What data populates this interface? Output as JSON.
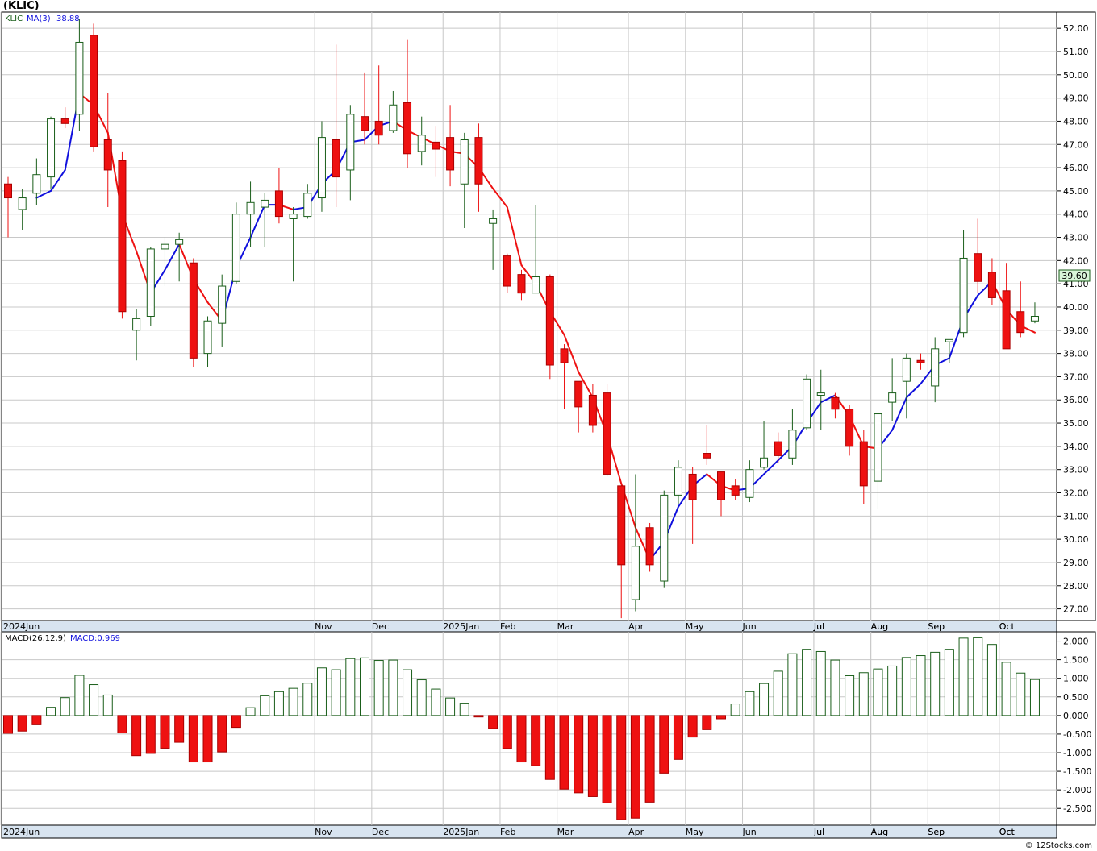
{
  "title": "(KLIC)",
  "footer": "© 12Stocks.com",
  "price_panel": {
    "legend": {
      "ticker": "KLIC",
      "ma_label": "MA(3)",
      "ma_value": "38.88"
    },
    "last_price_label": "39.60",
    "y_ticks": [
      "27.00",
      "28.00",
      "29.00",
      "30.00",
      "31.00",
      "32.00",
      "33.00",
      "34.00",
      "35.00",
      "36.00",
      "37.00",
      "38.00",
      "39.00",
      "40.00",
      "41.00",
      "42.00",
      "43.00",
      "44.00",
      "45.00",
      "46.00",
      "47.00",
      "48.00",
      "49.00",
      "50.00",
      "51.00",
      "52.00"
    ]
  },
  "macd_panel": {
    "legend": {
      "label": "MACD(26,12,9)",
      "value_label": "MACD:0.969"
    },
    "y_ticks": [
      "-2.500",
      "-2.000",
      "-1.500",
      "-1.000",
      "-0.500",
      "0.000",
      "0.500",
      "1.000",
      "1.500",
      "2.000"
    ]
  },
  "x_axis_labels": [
    "2024Jun",
    "Jul",
    "Aug",
    "Sep",
    "Oct",
    "Nov",
    "Dec",
    "2025Jan",
    "Feb",
    "Mar",
    "Apr",
    "May",
    "Jun",
    "Jul",
    "Aug",
    "Sep",
    "Oct"
  ],
  "colors": {
    "up": "#1a5e1a",
    "down": "#ee1111",
    "ma_up": "#1010dd",
    "ma_down": "#ee1111",
    "grid": "#c8c8c8",
    "axis_band": "#d8e4f0"
  },
  "chart_data": [
    {
      "type": "candlestick",
      "title": "(KLIC)",
      "y_range": [
        26.5,
        52.7
      ],
      "x_tick_week_index": {
        "2024Jun": 0,
        "Jul": 57,
        "Aug": 61,
        "Sep": 65,
        "Oct": 70,
        "Nov": 22,
        "Dec": 26,
        "2025Jan": 31,
        "Feb": 35,
        "Mar": 39,
        "Apr": 44,
        "May": 48,
        "Jun": 52
      },
      "candles": [
        {
          "o": 45.3,
          "h": 45.6,
          "l": 43.0,
          "c": 44.7
        },
        {
          "o": 44.2,
          "h": 45.1,
          "l": 43.3,
          "c": 44.7
        },
        {
          "o": 44.9,
          "h": 46.4,
          "l": 44.4,
          "c": 45.7
        },
        {
          "o": 45.6,
          "h": 48.2,
          "l": 45.1,
          "c": 48.1
        },
        {
          "o": 48.1,
          "h": 48.6,
          "l": 47.7,
          "c": 47.9
        },
        {
          "o": 48.3,
          "h": 52.4,
          "l": 47.6,
          "c": 51.4
        },
        {
          "o": 51.7,
          "h": 52.2,
          "l": 46.7,
          "c": 46.9
        },
        {
          "o": 47.2,
          "h": 49.2,
          "l": 44.3,
          "c": 45.9
        },
        {
          "o": 46.3,
          "h": 46.7,
          "l": 39.5,
          "c": 39.8
        },
        {
          "o": 39.0,
          "h": 39.9,
          "l": 37.7,
          "c": 39.5
        },
        {
          "o": 39.6,
          "h": 42.6,
          "l": 39.2,
          "c": 42.5
        },
        {
          "o": 42.5,
          "h": 43.0,
          "l": 40.9,
          "c": 42.7
        },
        {
          "o": 42.7,
          "h": 43.2,
          "l": 41.1,
          "c": 42.9
        },
        {
          "o": 41.9,
          "h": 42.1,
          "l": 37.4,
          "c": 37.8
        },
        {
          "o": 38.0,
          "h": 39.6,
          "l": 37.4,
          "c": 39.4
        },
        {
          "o": 39.3,
          "h": 41.4,
          "l": 38.3,
          "c": 40.9
        },
        {
          "o": 41.1,
          "h": 44.5,
          "l": 41.0,
          "c": 44.0
        },
        {
          "o": 44.0,
          "h": 45.4,
          "l": 42.6,
          "c": 44.5
        },
        {
          "o": 44.3,
          "h": 44.9,
          "l": 42.6,
          "c": 44.6
        },
        {
          "o": 45.0,
          "h": 46.0,
          "l": 43.6,
          "c": 43.9
        },
        {
          "o": 43.8,
          "h": 44.3,
          "l": 41.1,
          "c": 44.0
        },
        {
          "o": 43.9,
          "h": 45.3,
          "l": 43.8,
          "c": 44.9
        },
        {
          "o": 44.7,
          "h": 48.0,
          "l": 44.1,
          "c": 47.3
        },
        {
          "o": 47.2,
          "h": 51.3,
          "l": 44.3,
          "c": 45.6
        },
        {
          "o": 45.9,
          "h": 48.7,
          "l": 44.6,
          "c": 48.3
        },
        {
          "o": 48.2,
          "h": 50.1,
          "l": 47.0,
          "c": 47.6
        },
        {
          "o": 48.0,
          "h": 50.4,
          "l": 47.0,
          "c": 47.4
        },
        {
          "o": 47.6,
          "h": 49.3,
          "l": 47.5,
          "c": 48.7
        },
        {
          "o": 48.8,
          "h": 51.5,
          "l": 46.0,
          "c": 46.6
        },
        {
          "o": 46.7,
          "h": 48.2,
          "l": 46.1,
          "c": 47.4
        },
        {
          "o": 47.1,
          "h": 47.8,
          "l": 45.6,
          "c": 46.8
        },
        {
          "o": 47.3,
          "h": 48.7,
          "l": 45.2,
          "c": 45.9
        },
        {
          "o": 45.3,
          "h": 47.5,
          "l": 43.4,
          "c": 47.2
        },
        {
          "o": 47.3,
          "h": 47.9,
          "l": 44.1,
          "c": 45.3
        },
        {
          "o": 43.6,
          "h": 44.2,
          "l": 41.6,
          "c": 43.8
        },
        {
          "o": 42.2,
          "h": 42.3,
          "l": 40.6,
          "c": 40.9
        },
        {
          "o": 41.4,
          "h": 41.6,
          "l": 40.3,
          "c": 40.6
        },
        {
          "o": 40.6,
          "h": 44.4,
          "l": 40.6,
          "c": 41.3
        },
        {
          "o": 41.3,
          "h": 41.4,
          "l": 36.9,
          "c": 37.5
        },
        {
          "o": 38.2,
          "h": 38.4,
          "l": 35.6,
          "c": 37.6
        },
        {
          "o": 36.8,
          "h": 36.8,
          "l": 34.6,
          "c": 35.7
        },
        {
          "o": 36.2,
          "h": 36.7,
          "l": 34.6,
          "c": 34.9
        },
        {
          "o": 36.3,
          "h": 36.7,
          "l": 32.7,
          "c": 32.8
        },
        {
          "o": 32.3,
          "h": 32.3,
          "l": 26.6,
          "c": 28.9
        },
        {
          "o": 27.4,
          "h": 32.8,
          "l": 26.9,
          "c": 29.7
        },
        {
          "o": 30.5,
          "h": 30.7,
          "l": 28.6,
          "c": 28.9
        },
        {
          "o": 28.2,
          "h": 32.1,
          "l": 27.9,
          "c": 31.9
        },
        {
          "o": 31.9,
          "h": 33.4,
          "l": 31.5,
          "c": 33.1
        },
        {
          "o": 32.8,
          "h": 33.1,
          "l": 29.8,
          "c": 31.7
        },
        {
          "o": 33.7,
          "h": 34.9,
          "l": 33.2,
          "c": 33.5
        },
        {
          "o": 32.9,
          "h": 32.9,
          "l": 31.0,
          "c": 31.7
        },
        {
          "o": 32.3,
          "h": 32.6,
          "l": 31.7,
          "c": 31.9
        },
        {
          "o": 31.8,
          "h": 33.4,
          "l": 31.6,
          "c": 33.0
        },
        {
          "o": 33.1,
          "h": 35.1,
          "l": 33.0,
          "c": 33.5
        },
        {
          "o": 34.2,
          "h": 34.6,
          "l": 33.3,
          "c": 33.6
        },
        {
          "o": 33.5,
          "h": 35.6,
          "l": 33.2,
          "c": 34.7
        },
        {
          "o": 34.8,
          "h": 37.1,
          "l": 34.7,
          "c": 36.9
        },
        {
          "o": 36.2,
          "h": 37.3,
          "l": 34.7,
          "c": 36.3
        },
        {
          "o": 36.1,
          "h": 36.3,
          "l": 35.2,
          "c": 35.6
        },
        {
          "o": 35.6,
          "h": 35.8,
          "l": 33.6,
          "c": 34.0
        },
        {
          "o": 34.2,
          "h": 34.7,
          "l": 31.5,
          "c": 32.3
        },
        {
          "o": 32.5,
          "h": 35.3,
          "l": 31.3,
          "c": 35.4
        },
        {
          "o": 35.9,
          "h": 37.8,
          "l": 35.1,
          "c": 36.3
        },
        {
          "o": 36.8,
          "h": 38.0,
          "l": 35.2,
          "c": 37.8
        },
        {
          "o": 37.7,
          "h": 38.0,
          "l": 37.3,
          "c": 37.6
        },
        {
          "o": 36.6,
          "h": 38.7,
          "l": 35.9,
          "c": 38.2
        },
        {
          "o": 38.5,
          "h": 38.6,
          "l": 37.6,
          "c": 38.6
        },
        {
          "o": 38.9,
          "h": 43.3,
          "l": 38.7,
          "c": 42.1
        },
        {
          "o": 42.3,
          "h": 43.8,
          "l": 40.6,
          "c": 41.1
        },
        {
          "o": 41.5,
          "h": 42.1,
          "l": 40.1,
          "c": 40.4
        },
        {
          "o": 40.7,
          "h": 41.9,
          "l": 38.2,
          "c": 38.2
        },
        {
          "o": 39.8,
          "h": 41.1,
          "l": 38.7,
          "c": 38.9
        },
        {
          "o": 39.4,
          "h": 40.2,
          "l": 39.3,
          "c": 39.6
        }
      ],
      "ma3": [
        null,
        null,
        44.7,
        45.0,
        45.9,
        49.2,
        48.7,
        47.5,
        44.0,
        42.4,
        40.6,
        41.6,
        42.7,
        41.2,
        40.2,
        39.4,
        41.7,
        43.0,
        44.4,
        44.4,
        44.2,
        44.3,
        45.3,
        45.9,
        47.1,
        47.2,
        47.8,
        48.0,
        47.6,
        47.3,
        47.0,
        46.7,
        46.6,
        46.0,
        45.1,
        44.3,
        41.8,
        41.0,
        39.8,
        38.8,
        37.2,
        36.1,
        34.5,
        32.4,
        30.5,
        29.1,
        29.9,
        31.4,
        32.3,
        32.8,
        32.3,
        32.1,
        32.2,
        32.8,
        33.4,
        34.0,
        35.0,
        35.9,
        36.2,
        35.3,
        34.0,
        33.9,
        34.7,
        36.1,
        36.7,
        37.5,
        37.8,
        39.5,
        40.5,
        41.1,
        39.9,
        39.2,
        38.9
      ]
    },
    {
      "type": "bar",
      "title": "MACD(26,12,9)",
      "y_range": [
        -2.95,
        2.25
      ],
      "values": [
        -0.48,
        -0.42,
        -0.25,
        0.22,
        0.48,
        1.08,
        0.83,
        0.55,
        -0.47,
        -1.08,
        -1.02,
        -0.88,
        -0.72,
        -1.25,
        -1.25,
        -0.98,
        -0.32,
        0.21,
        0.53,
        0.64,
        0.73,
        0.87,
        1.28,
        1.23,
        1.53,
        1.55,
        1.48,
        1.49,
        1.23,
        0.96,
        0.71,
        0.47,
        0.33,
        -0.04,
        -0.35,
        -0.89,
        -1.25,
        -1.35,
        -1.72,
        -1.98,
        -2.08,
        -2.18,
        -2.35,
        -2.8,
        -2.76,
        -2.33,
        -1.55,
        -1.18,
        -0.58,
        -0.38,
        -0.09,
        0.31,
        0.64,
        0.86,
        1.19,
        1.66,
        1.78,
        1.72,
        1.49,
        1.07,
        1.15,
        1.25,
        1.33,
        1.56,
        1.61,
        1.7,
        1.78,
        2.08,
        2.09,
        1.91,
        1.43,
        1.14,
        0.969
      ]
    }
  ]
}
